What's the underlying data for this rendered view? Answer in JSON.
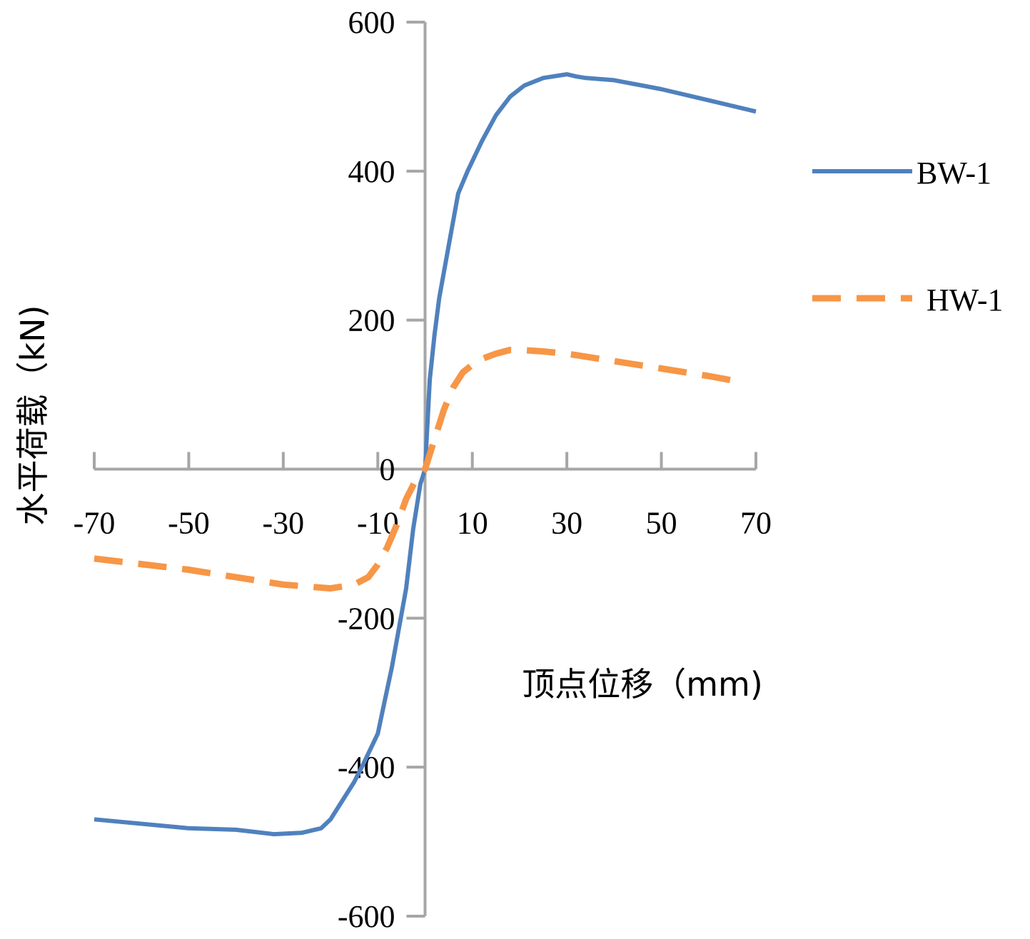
{
  "chart_data": {
    "type": "line",
    "xlabel": "顶点位移（mm)",
    "ylabel": "水平荷载（kN)",
    "xlim": [
      -70,
      70
    ],
    "ylim": [
      -600,
      600
    ],
    "x_ticks": [
      -70,
      -50,
      -30,
      -10,
      10,
      30,
      50,
      70
    ],
    "x_tick_labels": [
      "-70",
      "-50",
      "-30",
      "-10",
      "10",
      "30",
      "50",
      "70"
    ],
    "y_ticks": [
      -600,
      -400,
      -200,
      0,
      200,
      400,
      600
    ],
    "y_tick_labels": [
      "-600",
      "-400",
      "-200",
      "0",
      "200",
      "400",
      "600"
    ],
    "grid": false,
    "legend_position": "right",
    "series": [
      {
        "name": "BW-1",
        "color": "#4f81bd",
        "dash": "solid",
        "x": [
          -70,
          -50,
          -40,
          -32,
          -26,
          -22,
          -20,
          -18,
          -15,
          -13,
          -10,
          -8.5,
          -7,
          -6,
          -4,
          -2.5,
          -1,
          0,
          1,
          2,
          3,
          5,
          7,
          9,
          12,
          15,
          18,
          21,
          25,
          30,
          32,
          34,
          40,
          50,
          60,
          70
        ],
        "y": [
          -470,
          -482,
          -484,
          -490,
          -488,
          -482,
          -470,
          -450,
          -420,
          -395,
          -355,
          -310,
          -265,
          -230,
          -160,
          -80,
          -20,
          0,
          120,
          180,
          230,
          300,
          370,
          400,
          440,
          475,
          500,
          515,
          525,
          530,
          527,
          525,
          522,
          510,
          495,
          480
        ]
      },
      {
        "name": "HW-1",
        "color": "#f79646",
        "dash": "dashed",
        "x": [
          -70,
          -50,
          -40,
          -30,
          -20,
          -15,
          -12,
          -10,
          -8,
          -6,
          -4,
          -2,
          0,
          2,
          4,
          6,
          8,
          10,
          12,
          15,
          18,
          20,
          25,
          30,
          40,
          50,
          60,
          66
        ],
        "y": [
          -120,
          -135,
          -145,
          -155,
          -160,
          -155,
          -145,
          -128,
          -105,
          -75,
          -40,
          -15,
          0,
          40,
          80,
          110,
          130,
          140,
          148,
          155,
          160,
          160,
          158,
          155,
          145,
          135,
          125,
          118
        ]
      }
    ]
  }
}
